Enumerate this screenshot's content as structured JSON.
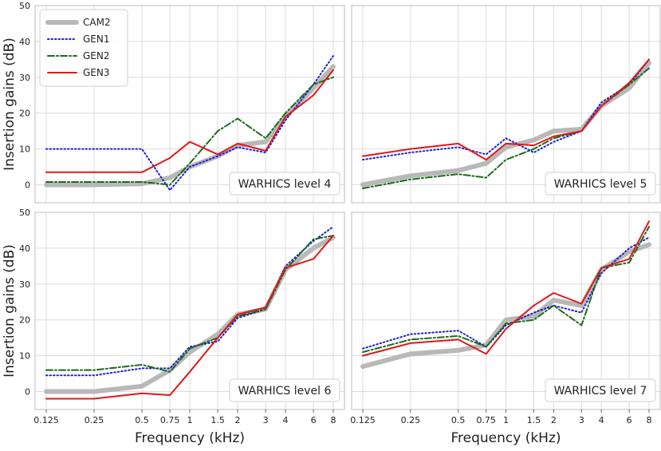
{
  "figure": {
    "xlabel": "Frequency (kHz)",
    "ylabel": "Insertion gains (dB)",
    "legend": {
      "placement": "top-left of first panel",
      "entries": [
        "CAM2",
        "GEN1",
        "GEN2",
        "GEN3"
      ]
    }
  },
  "series_styles": {
    "CAM2": {
      "color": "#b8b8b8",
      "style": "thick-solid"
    },
    "GEN1": {
      "color": "#1f1fd6",
      "style": "dotted"
    },
    "GEN2": {
      "color": "#1a6b1a",
      "style": "dash-dot"
    },
    "GEN3": {
      "color": "#e01818",
      "style": "solid"
    }
  },
  "chart_data": [
    {
      "type": "line",
      "panel_label": "WARHICS level 4",
      "x_ticks": [
        "0.125",
        "0.25",
        "0.5",
        "0.75",
        "1",
        "1.5",
        "2",
        "3",
        "4",
        "6",
        "8"
      ],
      "x": [
        0.125,
        0.25,
        0.5,
        0.75,
        1,
        1.5,
        2,
        3,
        4,
        6,
        8
      ],
      "ylim": [
        -5,
        50
      ],
      "y_ticks": [
        0,
        10,
        20,
        30,
        40,
        50
      ],
      "grid": true,
      "series": [
        {
          "name": "CAM2",
          "values": [
            0,
            0,
            0.3,
            2,
            5,
            8,
            11,
            12,
            19,
            27,
            33
          ]
        },
        {
          "name": "GEN1",
          "values": [
            10,
            10,
            10,
            -1.5,
            5,
            8,
            10.5,
            9,
            18,
            28,
            36
          ]
        },
        {
          "name": "GEN2",
          "values": [
            0.8,
            0.8,
            0.8,
            0,
            6,
            15,
            18.5,
            13,
            20,
            28,
            30
          ]
        },
        {
          "name": "GEN3",
          "values": [
            3.5,
            3.5,
            3.5,
            7.5,
            12,
            8.5,
            11.5,
            9.5,
            19,
            25,
            32
          ]
        }
      ]
    },
    {
      "type": "line",
      "panel_label": "WARHICS level 5",
      "x_ticks": [
        "0.125",
        "0.25",
        "0.5",
        "0.75",
        "1",
        "1.5",
        "2",
        "3",
        "4",
        "6",
        "8"
      ],
      "x": [
        0.125,
        0.25,
        0.5,
        0.75,
        1,
        1.5,
        2,
        3,
        4,
        6,
        8
      ],
      "ylim": [
        -5,
        50
      ],
      "y_ticks": [
        0,
        10,
        20,
        30,
        40,
        50
      ],
      "grid": true,
      "series": [
        {
          "name": "CAM2",
          "values": [
            0,
            2.5,
            4,
            6,
            10.5,
            12.5,
            15,
            15.5,
            22,
            27,
            34
          ]
        },
        {
          "name": "GEN1",
          "values": [
            7,
            9,
            10.5,
            8.5,
            13,
            9,
            12,
            15,
            23,
            28,
            35
          ]
        },
        {
          "name": "GEN2",
          "values": [
            -1,
            1.5,
            3,
            2,
            7,
            10,
            13,
            15,
            22,
            28,
            32.5
          ]
        },
        {
          "name": "GEN3",
          "values": [
            8,
            10,
            11.5,
            7,
            11.5,
            11,
            13.5,
            15,
            22,
            28.5,
            35
          ]
        }
      ]
    },
    {
      "type": "line",
      "panel_label": "WARHICS level 6",
      "x_ticks": [
        "0.125",
        "0.25",
        "0.5",
        "0.75",
        "1",
        "1.5",
        "2",
        "3",
        "4",
        "6",
        "8"
      ],
      "x": [
        0.125,
        0.25,
        0.5,
        0.75,
        1,
        1.5,
        2,
        3,
        4,
        6,
        8
      ],
      "ylim": [
        -5,
        50
      ],
      "y_ticks": [
        0,
        10,
        20,
        30,
        40,
        50
      ],
      "grid": true,
      "series": [
        {
          "name": "CAM2",
          "values": [
            0,
            0,
            1.5,
            6,
            11,
            16,
            21.5,
            23,
            34,
            40,
            43
          ]
        },
        {
          "name": "GEN1",
          "values": [
            4.5,
            4.5,
            6.5,
            6.5,
            12.5,
            14,
            20.5,
            23,
            35,
            42,
            46
          ]
        },
        {
          "name": "GEN2",
          "values": [
            6,
            6,
            7.5,
            5.5,
            12,
            15,
            21,
            23,
            34,
            42.5,
            43.5
          ]
        },
        {
          "name": "GEN3",
          "values": [
            -2,
            -2,
            -0.5,
            -1,
            5.5,
            15,
            21.5,
            23.5,
            34.5,
            37,
            43.5
          ]
        }
      ]
    },
    {
      "type": "line",
      "panel_label": "WARHICS level 7",
      "x_ticks": [
        "0.125",
        "0.25",
        "0.5",
        "0.75",
        "1",
        "1.5",
        "2",
        "3",
        "4",
        "6",
        "8"
      ],
      "x": [
        0.125,
        0.25,
        0.5,
        0.75,
        1,
        1.5,
        2,
        3,
        4,
        6,
        8
      ],
      "ylim": [
        -5,
        50
      ],
      "y_ticks": [
        0,
        10,
        20,
        30,
        40,
        50
      ],
      "grid": true,
      "series": [
        {
          "name": "CAM2",
          "values": [
            7,
            10.5,
            11.5,
            13,
            20,
            21,
            25.5,
            24,
            34,
            39,
            41
          ]
        },
        {
          "name": "GEN1",
          "values": [
            12,
            16,
            17,
            12.5,
            18.5,
            22,
            24,
            22,
            33,
            40,
            43
          ]
        },
        {
          "name": "GEN2",
          "values": [
            11,
            14.5,
            15.5,
            12.5,
            19,
            20,
            24,
            18.5,
            34.5,
            36,
            46
          ]
        },
        {
          "name": "GEN3",
          "values": [
            10,
            13.5,
            14.5,
            10.5,
            17.5,
            24,
            27.5,
            24.5,
            34.5,
            37,
            47.5
          ]
        }
      ]
    }
  ]
}
